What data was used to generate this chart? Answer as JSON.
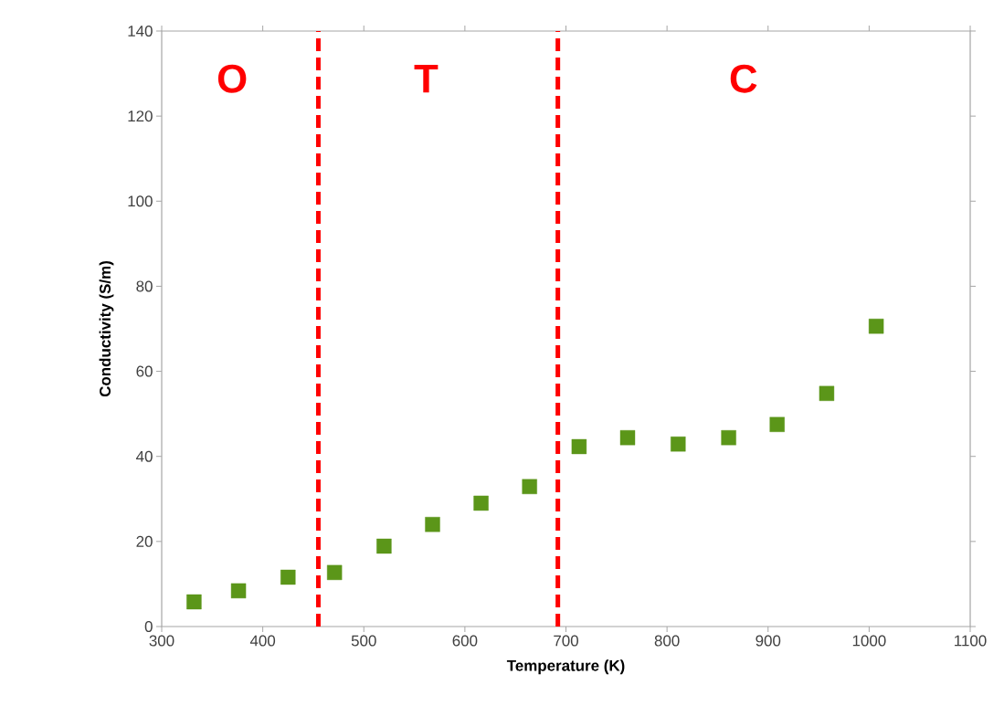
{
  "chart_data": {
    "type": "scatter",
    "xlabel": "Temperature (K)",
    "ylabel": "Conductivity (S/m)",
    "x": [
      332,
      376,
      425,
      471,
      520,
      568,
      616,
      664,
      713,
      761,
      811,
      861,
      909,
      958,
      1007
    ],
    "series": [
      {
        "color": "#5b9619",
        "values": [
          5.8,
          8.4,
          11.6,
          12.7,
          18.9,
          24.0,
          29.0,
          32.9,
          42.3,
          44.4,
          42.9,
          44.4,
          47.5,
          54.8,
          70.6
        ]
      }
    ],
    "xlim": [
      300,
      1100
    ],
    "xticks": [
      300,
      400,
      500,
      600,
      700,
      800,
      900,
      1000,
      1100
    ],
    "ylim": [
      0,
      140
    ],
    "yticks": [
      0,
      20,
      40,
      60,
      80,
      100,
      120,
      140
    ],
    "ref_lines": [
      {
        "axis": "x",
        "value": 455,
        "color": "#ff0000",
        "line_style": "dashed"
      },
      {
        "axis": "x",
        "value": 692,
        "color": "#ff0000",
        "line_style": "dashed"
      }
    ],
    "annotations": [
      "O",
      "T",
      "C"
    ],
    "marker": "square",
    "grid": false
  }
}
